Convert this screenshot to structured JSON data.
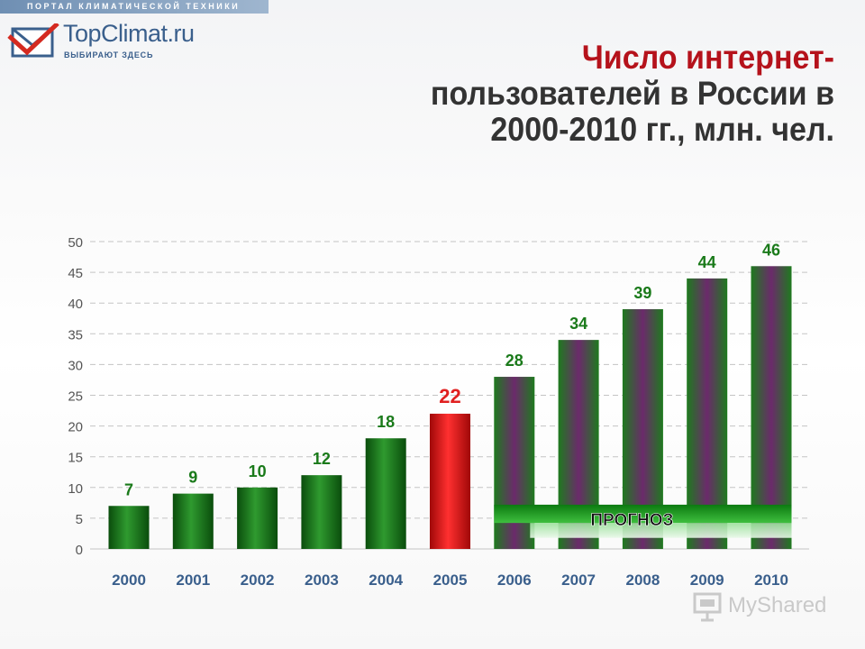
{
  "header": {
    "strip_text": "ПОРТАЛ КЛИМАТИЧЕСКОЙ ТЕХНИКИ",
    "logo_prefix": "Top",
    "logo_suffix": "Climat.ru",
    "logo_tagline": "ВЫБИРАЮТ ЗДЕСЬ"
  },
  "title": {
    "line1": "Число интернет-",
    "line2": "пользователей в России в",
    "line3": "2000-2010 гг., млн. чел."
  },
  "watermark": "MyShared",
  "colors": {
    "green": "#0f6e12",
    "red": "#d81010",
    "purple": "#6b2a6b",
    "label_green": "#1a7a1a",
    "label_red": "#e02020",
    "title_red": "#b5121b"
  },
  "chart_data": {
    "type": "bar",
    "title": "",
    "xlabel": "",
    "ylabel": "",
    "categories": [
      "2000",
      "2001",
      "2002",
      "2003",
      "2004",
      "2005",
      "2006",
      "2007",
      "2008",
      "2009",
      "2010"
    ],
    "values": [
      7,
      9,
      10,
      12,
      18,
      22,
      28,
      34,
      39,
      44,
      46
    ],
    "value_labels": [
      "7",
      "9",
      "10",
      "12",
      "18",
      "22",
      "28",
      "34",
      "39",
      "44",
      "46"
    ],
    "bar_styles": [
      "actual",
      "actual",
      "actual",
      "actual",
      "actual",
      "highlight",
      "forecast",
      "forecast",
      "forecast",
      "forecast",
      "forecast"
    ],
    "ylim": [
      0,
      50
    ],
    "yticks": [
      0,
      5,
      10,
      15,
      20,
      25,
      30,
      35,
      40,
      45,
      50
    ],
    "grid": true,
    "annotation": "ПРОГНОЗ"
  }
}
